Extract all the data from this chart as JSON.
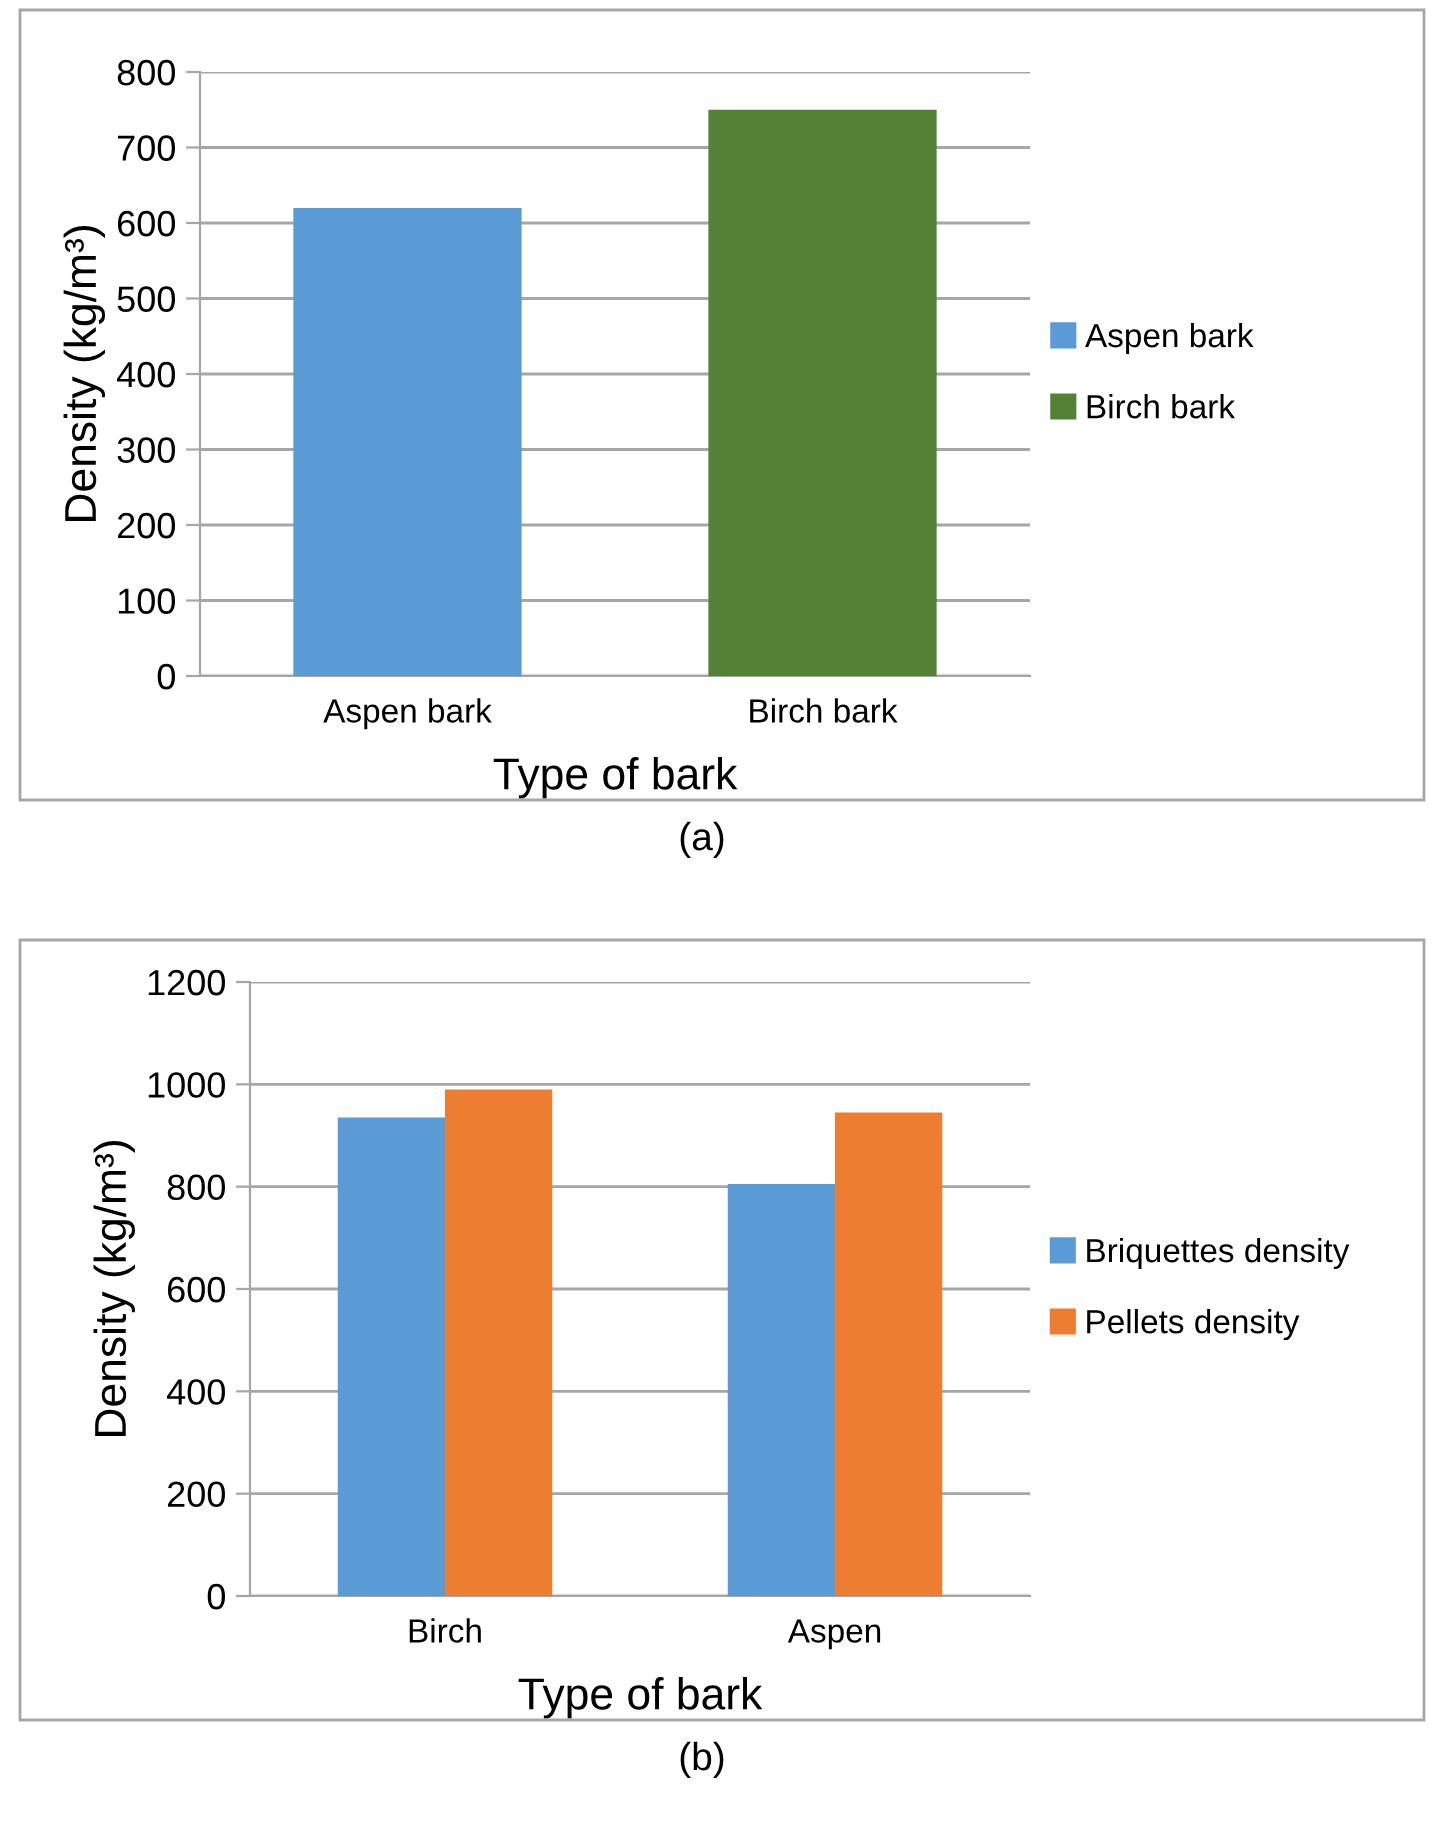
{
  "chart_data": [
    {
      "type": "bar",
      "xlabel": "Type of bark",
      "ylabel": "Density (kg/m³)",
      "categories": [
        "Aspen bark",
        "Birch bark"
      ],
      "series": [
        {
          "name": "Aspen bark",
          "color": "#5b9bd5",
          "values": [
            620,
            null
          ]
        },
        {
          "name": "Birch bark",
          "color": "#538135",
          "values": [
            null,
            750
          ]
        }
      ],
      "ylim": [
        0,
        800
      ],
      "yticks": [
        0,
        100,
        200,
        300,
        400,
        500,
        600,
        700,
        800
      ],
      "grid": "y",
      "legend": "right",
      "annotations": [
        "(a)"
      ]
    },
    {
      "type": "bar",
      "xlabel": "Type of bark",
      "ylabel": "Density (kg/m³)",
      "categories": [
        "Birch",
        "Aspen"
      ],
      "series": [
        {
          "name": "Briquettes density",
          "color": "#5b9bd5",
          "values": [
            935,
            805
          ]
        },
        {
          "name": "Pellets density",
          "color": "#ed7d31",
          "values": [
            990,
            945
          ]
        }
      ],
      "ylim": [
        0,
        1200
      ],
      "yticks": [
        0,
        200,
        400,
        600,
        800,
        1000,
        1200
      ],
      "grid": "y",
      "legend": "right",
      "annotations": [
        "(b)"
      ]
    }
  ]
}
